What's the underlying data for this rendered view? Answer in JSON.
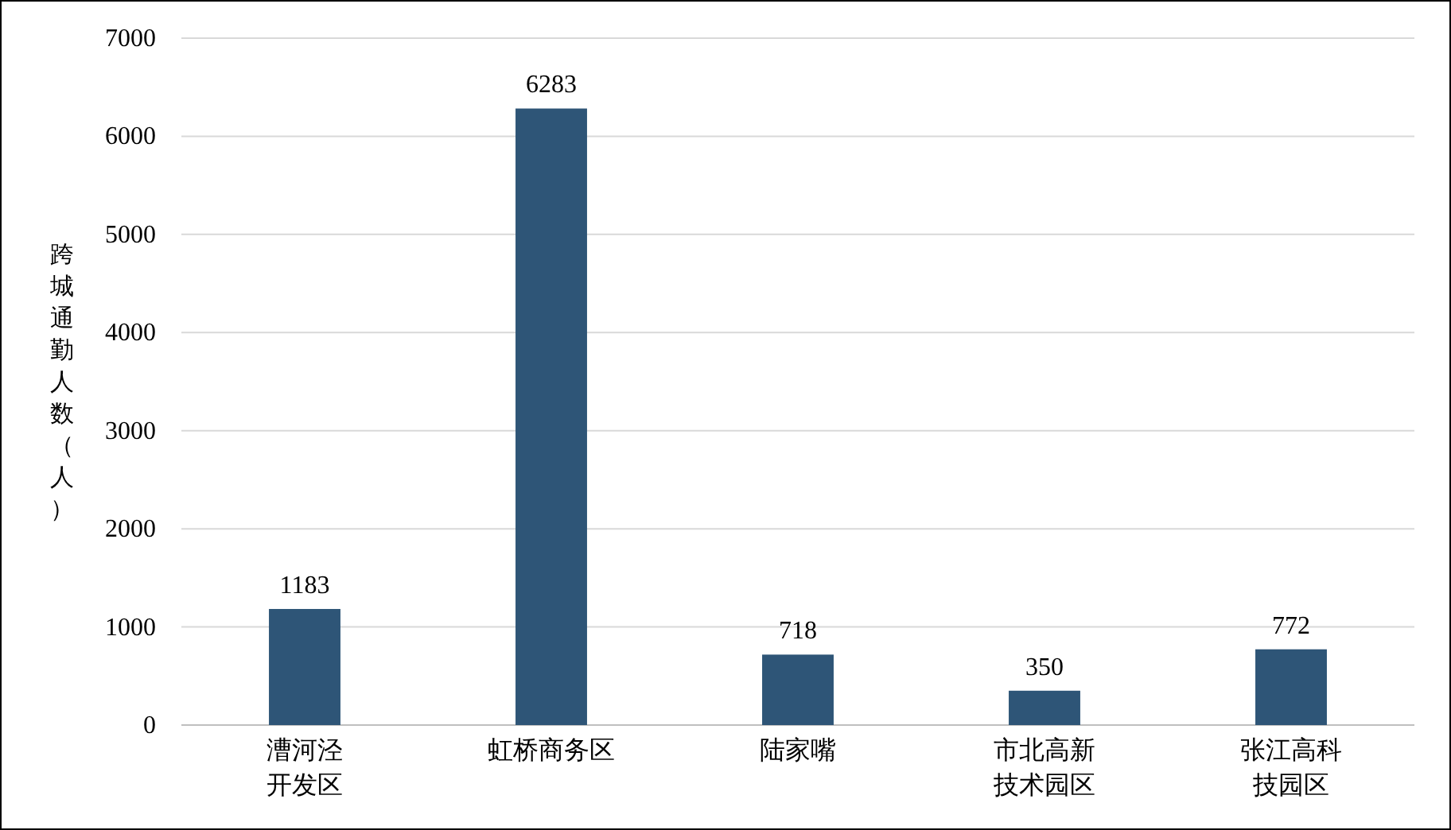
{
  "chart_data": {
    "type": "bar",
    "ylabel": "跨城通勤人数（人）",
    "categories": [
      "漕河泾开发区",
      "虹桥商务区",
      "陆家嘴",
      "市北高新技术园区",
      "张江高科技园区"
    ],
    "values": [
      1183,
      6283,
      718,
      350,
      772
    ],
    "color": "#2e5577",
    "ylim": [
      0,
      7000
    ],
    "yticks": [
      0,
      1000,
      2000,
      3000,
      4000,
      5000,
      6000,
      7000
    ],
    "grid": "y",
    "data_labels": true
  }
}
